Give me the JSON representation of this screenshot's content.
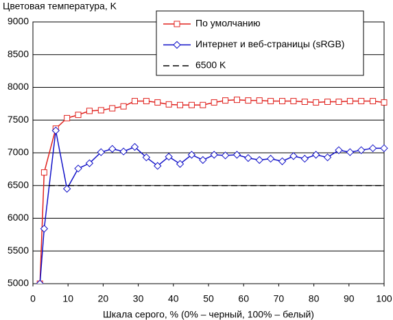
{
  "chart_data": {
    "type": "line",
    "ylabel": "Цветовая температура, K",
    "xlabel": "Шкала серого, % (0% – черный, 100% – белый)",
    "xlim": [
      0,
      100
    ],
    "xticks": [
      0,
      10,
      20,
      30,
      40,
      50,
      60,
      70,
      80,
      90,
      100
    ],
    "ylim": [
      5000,
      9000
    ],
    "yticks": [
      5000,
      5500,
      6000,
      6500,
      7000,
      7500,
      8000,
      8500,
      9000
    ],
    "grid": true,
    "legend": "upper right",
    "series": [
      {
        "name": "По умолчанию",
        "color": "#e0201c",
        "marker": "square",
        "dash": false,
        "x": [
          2,
          3.2,
          6.5,
          9.7,
          12.9,
          16.1,
          19.4,
          22.6,
          25.8,
          29,
          32.3,
          35.5,
          38.7,
          41.9,
          45.2,
          48.4,
          51.6,
          54.8,
          58.1,
          61.3,
          64.5,
          67.7,
          71,
          74.2,
          77.4,
          80.6,
          83.9,
          87.1,
          90.3,
          93.5,
          96.8,
          100
        ],
        "values": [
          5000,
          6700,
          7370,
          7530,
          7580,
          7640,
          7650,
          7680,
          7710,
          7790,
          7790,
          7770,
          7740,
          7730,
          7730,
          7730,
          7770,
          7800,
          7810,
          7800,
          7800,
          7790,
          7790,
          7790,
          7780,
          7770,
          7780,
          7780,
          7790,
          7790,
          7790,
          7770
        ]
      },
      {
        "name": "Интернет и веб-страницы (sRGB)",
        "color": "#1010c8",
        "marker": "diamond",
        "dash": false,
        "x": [
          2,
          3.2,
          6.5,
          9.7,
          12.9,
          16.1,
          19.4,
          22.6,
          25.8,
          29,
          32.3,
          35.5,
          38.7,
          41.9,
          45.2,
          48.4,
          51.6,
          54.8,
          58.1,
          61.3,
          64.5,
          67.7,
          71,
          74.2,
          77.4,
          80.6,
          83.9,
          87.1,
          90.3,
          93.5,
          96.8,
          100
        ],
        "values": [
          5000,
          5840,
          7340,
          6450,
          6760,
          6840,
          7010,
          7060,
          7020,
          7090,
          6930,
          6800,
          6940,
          6830,
          6970,
          6890,
          6970,
          6960,
          6970,
          6920,
          6890,
          6910,
          6870,
          6950,
          6910,
          6970,
          6930,
          7040,
          7010,
          7040,
          7070,
          7070
        ]
      },
      {
        "name": "6500 K",
        "color": "#000000",
        "marker": null,
        "dash": true,
        "x": [
          4.5,
          100
        ],
        "values": [
          6500,
          6500
        ]
      }
    ]
  }
}
